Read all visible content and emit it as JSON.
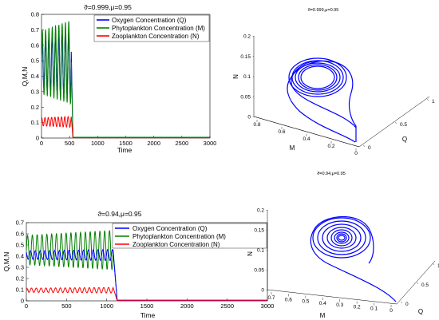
{
  "chart_data": [
    {
      "type": "line",
      "title": "ϑ=0.999,μ=0.95",
      "xlabel": "Time",
      "ylabel": "Q,M,N",
      "xlim": [
        0,
        3000
      ],
      "ylim": [
        0,
        0.8
      ],
      "xticks": [
        "0",
        "500",
        "1000",
        "1500",
        "2000",
        "2500",
        "3000"
      ],
      "yticks": [
        "0",
        "0.1",
        "0.2",
        "0.3",
        "0.4",
        "0.5",
        "0.6",
        "0.7",
        "0.8"
      ],
      "legend": {
        "position": "top-right"
      },
      "series": [
        {
          "name": "Oxygen Concentration (Q)",
          "color": "#0000ff",
          "x": [
            0,
            500,
            520,
            560,
            600,
            3000
          ],
          "y_approx_range": [
            0.2,
            0.72
          ]
        },
        {
          "name": "Phytoplankton Concentration (M)",
          "color": "#008000",
          "oscillation": {
            "x_start": 0,
            "x_end": 530,
            "min": 0.22,
            "max": 0.76,
            "collapse_at": 560
          }
        },
        {
          "name": "Zooplankton Concentration (N)",
          "color": "#ff0000",
          "oscillation": {
            "x_start": 0,
            "x_end": 530,
            "min": 0.07,
            "max": 0.14,
            "collapse_at": 560
          }
        }
      ]
    },
    {
      "type": "line",
      "title": "ϑ=0.999,μ=0.95",
      "xlabel": "M",
      "ylabel": "N",
      "zlabel": "Q",
      "projection": "3d",
      "m_ticks": [
        "0.8",
        "0.6",
        "0.4",
        "0.2",
        "0"
      ],
      "n_ticks": [
        "0",
        "0.05",
        "0.1",
        "0.15",
        "0.2"
      ],
      "q_ticks": [
        "0",
        "0.5",
        "1"
      ],
      "series": [
        {
          "name": "",
          "color": "#0000ff"
        }
      ]
    },
    {
      "type": "line",
      "title": "ϑ=0.94,μ=0.95",
      "xlabel": "Time",
      "ylabel": "Q,M,N",
      "xlim": [
        0,
        3000
      ],
      "ylim": [
        0,
        0.7
      ],
      "xticks": [
        "0",
        "500",
        "1000",
        "1500",
        "2000",
        "2500",
        "3000"
      ],
      "yticks": [
        "0",
        "0.1",
        "0.2",
        "0.3",
        "0.4",
        "0.5",
        "0.6",
        "0.7"
      ],
      "legend": {
        "position": "top-right"
      },
      "series": [
        {
          "name": "Oxygen Concentration (Q)",
          "color": "#0000ff",
          "oscillation": {
            "x_start": 0,
            "x_end": 1080,
            "min": 0.36,
            "max": 0.46,
            "collapse_at": 1130
          }
        },
        {
          "name": "Phytoplankton Concentration (M)",
          "color": "#008000",
          "oscillation": {
            "x_start": 0,
            "x_end": 1080,
            "min": 0.28,
            "max": 0.63,
            "collapse_at": 1130
          }
        },
        {
          "name": "Zooplankton Concentration (N)",
          "color": "#ff0000",
          "oscillation": {
            "x_start": 0,
            "x_end": 1080,
            "min": 0.07,
            "max": 0.12,
            "collapse_at": 1130
          }
        }
      ]
    },
    {
      "type": "line",
      "title": "ϑ=0.94,μ=0.95",
      "xlabel": "M",
      "ylabel": "N",
      "zlabel": "Q",
      "projection": "3d",
      "m_ticks": [
        "0.7",
        "0.6",
        "0.5",
        "0.4",
        "0.3",
        "0.2",
        "0.1",
        "0"
      ],
      "n_ticks": [
        "0",
        "0.05",
        "0.1",
        "0.15",
        "0.2"
      ],
      "q_ticks": [
        "0",
        "0.5",
        "1"
      ],
      "series": [
        {
          "name": "",
          "color": "#0000ff"
        }
      ]
    }
  ]
}
